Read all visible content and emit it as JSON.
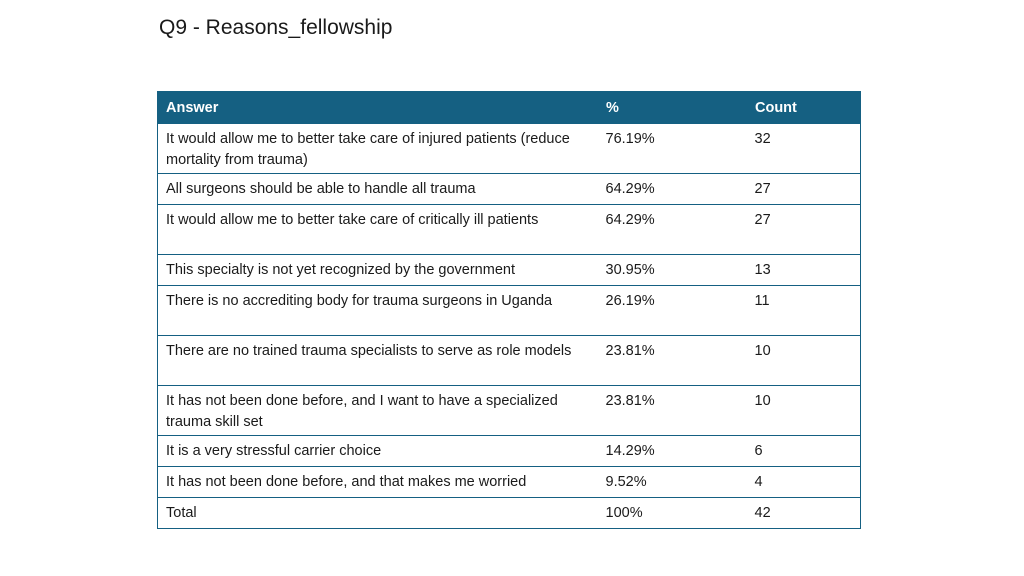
{
  "title": "Q9 - Reasons_fellowship",
  "table": {
    "headers": {
      "answer": "Answer",
      "percent": "%",
      "count": "Count"
    },
    "rows": [
      {
        "answer": "It would allow me to better take care of injured patients (reduce mortality from trauma)",
        "percent": "76.19%",
        "count": "32"
      },
      {
        "answer": "All surgeons should be able to handle all trauma",
        "percent": "64.29%",
        "count": "27"
      },
      {
        "answer": "It would allow me to better take care of critically ill patients",
        "percent": "64.29%",
        "count": "27"
      },
      {
        "answer": "This specialty is not yet recognized by the government",
        "percent": "30.95%",
        "count": "13"
      },
      {
        "answer": "There is no accrediting body for trauma surgeons in Uganda",
        "percent": "26.19%",
        "count": "11"
      },
      {
        "answer": "There are no trained trauma specialists to serve as role models",
        "percent": "23.81%",
        "count": "10"
      },
      {
        "answer": "It has not been done before, and I want to have a specialized trauma skill set",
        "percent": "23.81%",
        "count": "10"
      },
      {
        "answer": "It is a very stressful carrier choice",
        "percent": "14.29%",
        "count": "6"
      },
      {
        "answer": "It has not been done before, and that makes me worried",
        "percent": "9.52%",
        "count": "4"
      },
      {
        "answer": "Total",
        "percent": "100%",
        "count": "42"
      }
    ]
  }
}
